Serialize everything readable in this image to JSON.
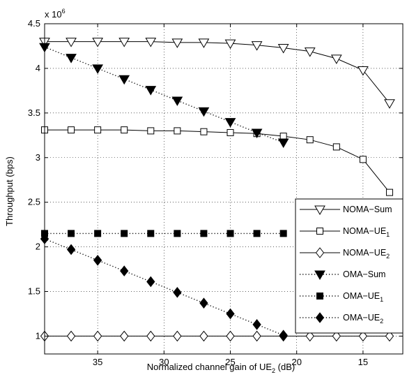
{
  "chart_data": {
    "type": "line",
    "title": "",
    "xlabel": "Normalized channel gain of UE",
    "xlabel_sub": "2",
    "xlabel_suffix": " (dB)",
    "ylabel": "Throughput (bps)",
    "y_multiplier": "x 10",
    "y_multiplier_exp": "6",
    "xlim": [
      39,
      12
    ],
    "ylim": [
      0.8,
      4.5
    ],
    "x_reversed": true,
    "xticks": [
      35,
      30,
      25,
      20,
      15
    ],
    "yticks": [
      1,
      1.5,
      2,
      2.5,
      3,
      3.5,
      4,
      4.5
    ],
    "grid": true,
    "legend_position": "right",
    "series": [
      {
        "name": "NOMA−Sum",
        "name_sub": "",
        "line": "solid",
        "marker": "triangle-down-open",
        "x": [
          39,
          37,
          35,
          33,
          31,
          29,
          27,
          25,
          23,
          21,
          19,
          17,
          15,
          13
        ],
        "y": [
          4.3,
          4.3,
          4.3,
          4.3,
          4.3,
          4.29,
          4.29,
          4.28,
          4.26,
          4.23,
          4.19,
          4.11,
          3.98,
          3.61
        ]
      },
      {
        "name": "NOMA−UE",
        "name_sub": "1",
        "line": "solid",
        "marker": "square-open",
        "x": [
          39,
          37,
          35,
          33,
          31,
          29,
          27,
          25,
          23,
          21,
          19,
          17,
          15,
          13
        ],
        "y": [
          3.31,
          3.31,
          3.31,
          3.31,
          3.3,
          3.3,
          3.29,
          3.28,
          3.27,
          3.24,
          3.2,
          3.12,
          2.98,
          2.61
        ]
      },
      {
        "name": "NOMA−UE",
        "name_sub": "2",
        "line": "solid",
        "marker": "diamond-open",
        "x": [
          39,
          37,
          35,
          33,
          31,
          29,
          27,
          25,
          23,
          21,
          19,
          17,
          15,
          13
        ],
        "y": [
          1.0,
          1.0,
          1.0,
          1.0,
          1.0,
          1.0,
          1.0,
          1.0,
          1.0,
          1.0,
          1.0,
          1.0,
          1.0,
          1.0
        ]
      },
      {
        "name": "OMA−Sum",
        "name_sub": "",
        "line": "dotted",
        "marker": "triangle-down-filled",
        "x": [
          39,
          37,
          35,
          33,
          31,
          29,
          27,
          25,
          23,
          21
        ],
        "y": [
          4.24,
          4.12,
          4.0,
          3.88,
          3.76,
          3.64,
          3.52,
          3.4,
          3.28,
          3.17
        ]
      },
      {
        "name": "OMA−UE",
        "name_sub": "1",
        "line": "dotted",
        "marker": "square-filled",
        "x": [
          39,
          37,
          35,
          33,
          31,
          29,
          27,
          25,
          23,
          21
        ],
        "y": [
          2.15,
          2.15,
          2.15,
          2.15,
          2.15,
          2.15,
          2.15,
          2.15,
          2.15,
          2.15
        ]
      },
      {
        "name": "OMA−UE",
        "name_sub": "2",
        "line": "dotted",
        "marker": "diamond-filled",
        "x": [
          39,
          37,
          35,
          33,
          31,
          29,
          27,
          25,
          23,
          21
        ],
        "y": [
          2.09,
          1.97,
          1.85,
          1.73,
          1.61,
          1.49,
          1.37,
          1.25,
          1.13,
          1.01
        ]
      }
    ]
  }
}
